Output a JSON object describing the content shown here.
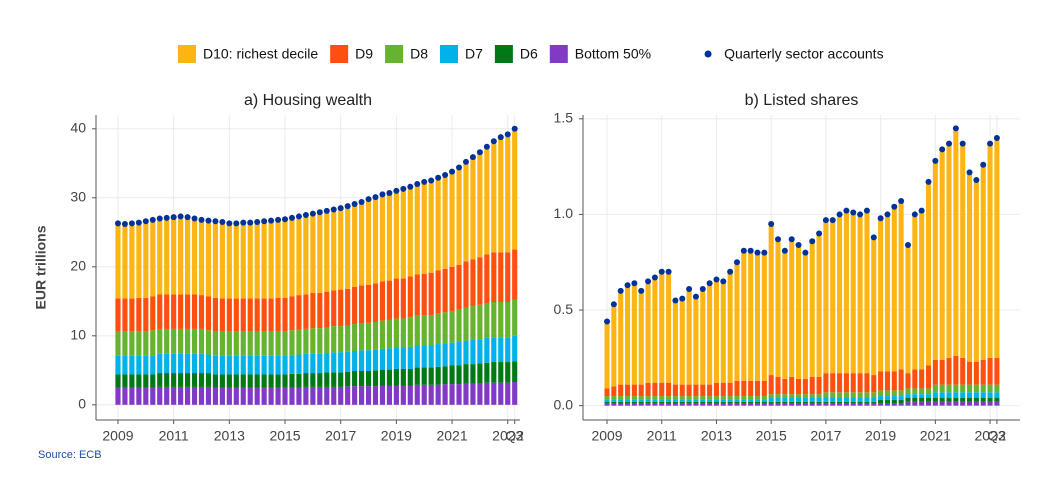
{
  "chart_data": [
    {
      "type": "bar",
      "stacked": true,
      "title": "a) Housing wealth",
      "ylabel": "EUR trillions",
      "categories": [
        "2009",
        null,
        null,
        null,
        null,
        null,
        null,
        null,
        "2011",
        null,
        null,
        null,
        null,
        null,
        null,
        null,
        "2013",
        null,
        null,
        null,
        null,
        null,
        null,
        null,
        "2015",
        null,
        null,
        null,
        null,
        null,
        null,
        null,
        "2017",
        null,
        null,
        null,
        null,
        null,
        null,
        null,
        "2019",
        null,
        null,
        null,
        null,
        null,
        null,
        null,
        "2021",
        null,
        null,
        null,
        null,
        null,
        null,
        null,
        "2023",
        "Q2"
      ],
      "ylim": [
        -2.2,
        42
      ],
      "yticks": [
        0,
        10,
        20,
        30,
        40
      ],
      "grid": true,
      "series": [
        {
          "name": "D10: richest decile",
          "color": "#fdb515",
          "values": [
            10.6,
            10.5,
            10.6,
            10.6,
            10.8,
            10.8,
            10.7,
            10.8,
            10.9,
            11.0,
            10.9,
            10.7,
            10.6,
            10.7,
            10.8,
            10.8,
            10.6,
            10.6,
            10.7,
            10.7,
            10.8,
            10.9,
            11.0,
            11.0,
            11.1,
            11.1,
            11.1,
            11.2,
            11.2,
            11.4,
            11.4,
            11.4,
            11.5,
            11.7,
            11.7,
            11.8,
            12.1,
            12.2,
            12.3,
            12.4,
            12.4,
            12.7,
            12.7,
            12.8,
            13.0,
            13.1,
            13.1,
            13.3,
            13.5,
            13.8,
            14.1,
            14.5,
            14.9,
            15.3,
            15.8,
            16.4,
            16.8,
            17.2
          ]
        },
        {
          "name": "D9",
          "color": "#ff4f0f",
          "values": [
            4.8,
            4.8,
            4.8,
            4.9,
            4.9,
            4.9,
            5.0,
            5.0,
            5.0,
            5.0,
            5.0,
            5.0,
            4.9,
            4.9,
            4.9,
            4.8,
            4.8,
            4.8,
            4.8,
            4.8,
            4.8,
            4.8,
            4.8,
            4.9,
            4.9,
            4.9,
            5.0,
            5.0,
            5.1,
            5.1,
            5.2,
            5.2,
            5.3,
            5.3,
            5.4,
            5.5,
            5.5,
            5.6,
            5.7,
            5.7,
            5.8,
            5.8,
            5.9,
            6.0,
            6.0,
            6.1,
            6.2,
            6.3,
            6.4,
            6.5,
            6.7,
            6.8,
            6.9,
            7.1,
            7.2,
            7.2,
            7.2,
            7.3
          ]
        },
        {
          "name": "D8",
          "color": "#65b32e",
          "values": [
            3.5,
            3.5,
            3.5,
            3.5,
            3.5,
            3.6,
            3.6,
            3.6,
            3.6,
            3.6,
            3.6,
            3.6,
            3.6,
            3.5,
            3.5,
            3.5,
            3.5,
            3.5,
            3.5,
            3.5,
            3.5,
            3.5,
            3.5,
            3.5,
            3.5,
            3.6,
            3.6,
            3.6,
            3.7,
            3.7,
            3.7,
            3.8,
            3.8,
            3.8,
            3.9,
            3.9,
            4.0,
            4.0,
            4.1,
            4.1,
            4.2,
            4.2,
            4.3,
            4.3,
            4.4,
            4.4,
            4.5,
            4.5,
            4.6,
            4.7,
            4.8,
            4.9,
            5.0,
            5.0,
            5.1,
            5.1,
            5.1,
            5.2
          ]
        },
        {
          "name": "D7",
          "color": "#00b1ea",
          "values": [
            2.7,
            2.7,
            2.7,
            2.7,
            2.7,
            2.8,
            2.8,
            2.8,
            2.8,
            2.8,
            2.8,
            2.8,
            2.8,
            2.7,
            2.7,
            2.7,
            2.7,
            2.7,
            2.7,
            2.7,
            2.7,
            2.7,
            2.7,
            2.7,
            2.7,
            2.7,
            2.8,
            2.8,
            2.8,
            2.8,
            2.8,
            2.9,
            2.9,
            2.9,
            2.9,
            3.0,
            3.0,
            3.0,
            3.0,
            3.1,
            3.1,
            3.1,
            3.2,
            3.2,
            3.2,
            3.2,
            3.3,
            3.3,
            3.3,
            3.4,
            3.4,
            3.5,
            3.5,
            3.6,
            3.6,
            3.6,
            3.6,
            3.7
          ]
        },
        {
          "name": "D6",
          "color": "#007816",
          "values": [
            1.9,
            1.9,
            1.9,
            1.9,
            1.9,
            1.9,
            2.0,
            2.0,
            2.0,
            2.0,
            2.0,
            2.0,
            2.0,
            2.0,
            1.9,
            1.9,
            1.9,
            1.9,
            1.9,
            1.9,
            1.9,
            1.9,
            1.9,
            1.9,
            1.9,
            2.0,
            2.0,
            2.0,
            2.0,
            2.0,
            2.1,
            2.1,
            2.1,
            2.1,
            2.2,
            2.2,
            2.2,
            2.3,
            2.3,
            2.3,
            2.4,
            2.4,
            2.4,
            2.5,
            2.5,
            2.5,
            2.6,
            2.6,
            2.7,
            2.7,
            2.8,
            2.8,
            2.9,
            2.9,
            3.0,
            3.0,
            3.0,
            3.0
          ]
        },
        {
          "name": "Bottom 50%",
          "color": "#8139c6",
          "values": [
            2.5,
            2.5,
            2.5,
            2.5,
            2.5,
            2.5,
            2.6,
            2.6,
            2.6,
            2.6,
            2.6,
            2.6,
            2.6,
            2.6,
            2.5,
            2.5,
            2.5,
            2.5,
            2.5,
            2.5,
            2.5,
            2.5,
            2.5,
            2.5,
            2.5,
            2.5,
            2.5,
            2.6,
            2.6,
            2.6,
            2.6,
            2.6,
            2.6,
            2.7,
            2.7,
            2.7,
            2.7,
            2.7,
            2.8,
            2.8,
            2.8,
            2.8,
            2.8,
            2.9,
            2.9,
            2.9,
            2.9,
            3.0,
            3.0,
            3.0,
            3.1,
            3.1,
            3.1,
            3.2,
            3.2,
            3.2,
            3.2,
            3.3
          ]
        },
        {
          "name": "Quarterly sector accounts",
          "type": "scatter",
          "color": "#003299",
          "values": [
            26.3,
            26.2,
            26.3,
            26.4,
            26.6,
            26.8,
            27.0,
            27.1,
            27.2,
            27.3,
            27.2,
            27.0,
            26.8,
            26.7,
            26.6,
            26.5,
            26.3,
            26.3,
            26.4,
            26.4,
            26.5,
            26.6,
            26.7,
            26.8,
            26.9,
            27.1,
            27.3,
            27.5,
            27.7,
            27.9,
            28.1,
            28.3,
            28.5,
            28.8,
            29.1,
            29.4,
            29.8,
            30.1,
            30.5,
            30.7,
            31.0,
            31.3,
            31.6,
            32.0,
            32.3,
            32.5,
            32.9,
            33.3,
            33.8,
            34.4,
            35.2,
            35.9,
            36.6,
            37.4,
            38.2,
            38.8,
            39.2,
            40.0
          ]
        }
      ]
    },
    {
      "type": "bar",
      "stacked": true,
      "title": "b) Listed shares",
      "categories": [
        "2009",
        null,
        null,
        null,
        null,
        null,
        null,
        null,
        "2011",
        null,
        null,
        null,
        null,
        null,
        null,
        null,
        "2013",
        null,
        null,
        null,
        null,
        null,
        null,
        null,
        "2015",
        null,
        null,
        null,
        null,
        null,
        null,
        null,
        "2017",
        null,
        null,
        null,
        null,
        null,
        null,
        null,
        "2019",
        null,
        null,
        null,
        null,
        null,
        null,
        null,
        "2021",
        null,
        null,
        null,
        null,
        null,
        null,
        null,
        "2023",
        "Q2"
      ],
      "ylim": [
        -0.075,
        1.52
      ],
      "yticks": [
        {
          "value": 0,
          "label": "0.0"
        },
        0.5,
        {
          "value": 1,
          "label": "1.0"
        },
        1.5
      ],
      "grid": true,
      "series": [
        {
          "name": "D10: richest decile",
          "color": "#fdb515",
          "values": [
            0.34,
            0.42,
            0.48,
            0.51,
            0.52,
            0.48,
            0.52,
            0.54,
            0.57,
            0.57,
            0.43,
            0.44,
            0.49,
            0.45,
            0.49,
            0.52,
            0.53,
            0.52,
            0.57,
            0.61,
            0.67,
            0.67,
            0.66,
            0.66,
            0.78,
            0.71,
            0.66,
            0.71,
            0.69,
            0.65,
            0.7,
            0.74,
            0.79,
            0.79,
            0.82,
            0.84,
            0.83,
            0.82,
            0.84,
            0.71,
            0.79,
            0.81,
            0.85,
            0.87,
            0.66,
            0.8,
            0.82,
            0.95,
            1.03,
            1.09,
            1.11,
            1.18,
            1.11,
            0.98,
            0.94,
            1.01,
            1.11,
            1.14
          ]
        },
        {
          "name": "D9",
          "color": "#ff4f0f",
          "values": [
            0.04,
            0.05,
            0.06,
            0.06,
            0.06,
            0.06,
            0.07,
            0.07,
            0.07,
            0.07,
            0.06,
            0.06,
            0.06,
            0.06,
            0.06,
            0.06,
            0.07,
            0.07,
            0.07,
            0.08,
            0.08,
            0.08,
            0.08,
            0.08,
            0.1,
            0.09,
            0.08,
            0.09,
            0.08,
            0.08,
            0.09,
            0.09,
            0.1,
            0.1,
            0.1,
            0.1,
            0.1,
            0.1,
            0.1,
            0.09,
            0.1,
            0.1,
            0.1,
            0.11,
            0.08,
            0.1,
            0.1,
            0.12,
            0.13,
            0.13,
            0.14,
            0.15,
            0.14,
            0.12,
            0.12,
            0.13,
            0.14,
            0.14
          ]
        },
        {
          "name": "D8",
          "color": "#65b32e",
          "values": [
            0.02,
            0.02,
            0.02,
            0.02,
            0.02,
            0.02,
            0.02,
            0.02,
            0.02,
            0.02,
            0.02,
            0.02,
            0.02,
            0.02,
            0.02,
            0.02,
            0.02,
            0.02,
            0.02,
            0.02,
            0.02,
            0.02,
            0.02,
            0.02,
            0.02,
            0.02,
            0.02,
            0.02,
            0.02,
            0.02,
            0.02,
            0.02,
            0.03,
            0.03,
            0.03,
            0.03,
            0.03,
            0.03,
            0.03,
            0.03,
            0.03,
            0.03,
            0.03,
            0.03,
            0.03,
            0.03,
            0.03,
            0.03,
            0.04,
            0.04,
            0.04,
            0.04,
            0.04,
            0.04,
            0.04,
            0.04,
            0.04,
            0.04
          ]
        },
        {
          "name": "D7",
          "color": "#00b1ea",
          "values": [
            0.01,
            0.01,
            0.01,
            0.01,
            0.01,
            0.01,
            0.01,
            0.01,
            0.01,
            0.01,
            0.01,
            0.01,
            0.01,
            0.01,
            0.01,
            0.01,
            0.01,
            0.01,
            0.01,
            0.01,
            0.01,
            0.01,
            0.01,
            0.01,
            0.02,
            0.02,
            0.02,
            0.02,
            0.02,
            0.02,
            0.02,
            0.02,
            0.02,
            0.02,
            0.02,
            0.02,
            0.02,
            0.02,
            0.02,
            0.02,
            0.02,
            0.02,
            0.02,
            0.02,
            0.02,
            0.02,
            0.02,
            0.02,
            0.03,
            0.03,
            0.03,
            0.03,
            0.03,
            0.03,
            0.03,
            0.03,
            0.03,
            0.03
          ]
        },
        {
          "name": "D6",
          "color": "#007816",
          "values": [
            0.01,
            0.01,
            0.01,
            0.01,
            0.01,
            0.01,
            0.01,
            0.01,
            0.01,
            0.01,
            0.01,
            0.01,
            0.01,
            0.01,
            0.01,
            0.01,
            0.01,
            0.01,
            0.01,
            0.01,
            0.01,
            0.01,
            0.01,
            0.01,
            0.01,
            0.01,
            0.01,
            0.01,
            0.01,
            0.01,
            0.01,
            0.01,
            0.01,
            0.01,
            0.01,
            0.01,
            0.01,
            0.01,
            0.01,
            0.01,
            0.02,
            0.02,
            0.02,
            0.02,
            0.02,
            0.02,
            0.02,
            0.02,
            0.02,
            0.02,
            0.02,
            0.02,
            0.02,
            0.02,
            0.02,
            0.02,
            0.02,
            0.02
          ]
        },
        {
          "name": "Bottom 50%",
          "color": "#8139c6",
          "values": [
            0.01,
            0.01,
            0.01,
            0.01,
            0.01,
            0.01,
            0.01,
            0.01,
            0.01,
            0.01,
            0.01,
            0.01,
            0.01,
            0.01,
            0.01,
            0.01,
            0.01,
            0.01,
            0.01,
            0.01,
            0.01,
            0.01,
            0.01,
            0.01,
            0.01,
            0.01,
            0.01,
            0.01,
            0.01,
            0.01,
            0.01,
            0.01,
            0.01,
            0.01,
            0.01,
            0.01,
            0.01,
            0.01,
            0.01,
            0.01,
            0.01,
            0.01,
            0.01,
            0.01,
            0.02,
            0.02,
            0.02,
            0.02,
            0.02,
            0.02,
            0.02,
            0.02,
            0.02,
            0.02,
            0.02,
            0.02,
            0.02,
            0.02
          ]
        },
        {
          "name": "Quarterly sector accounts",
          "type": "scatter",
          "color": "#003299",
          "values": [
            0.44,
            0.53,
            0.6,
            0.63,
            0.64,
            0.6,
            0.65,
            0.67,
            0.7,
            0.7,
            0.55,
            0.56,
            0.61,
            0.57,
            0.61,
            0.64,
            0.66,
            0.65,
            0.7,
            0.75,
            0.81,
            0.81,
            0.8,
            0.8,
            0.95,
            0.87,
            0.81,
            0.87,
            0.84,
            0.8,
            0.86,
            0.9,
            0.97,
            0.97,
            1.0,
            1.02,
            1.01,
            1.0,
            1.02,
            0.88,
            0.98,
            1.0,
            1.04,
            1.07,
            0.84,
            1.0,
            1.02,
            1.17,
            1.28,
            1.34,
            1.37,
            1.45,
            1.37,
            1.22,
            1.18,
            1.26,
            1.37,
            1.4
          ]
        }
      ]
    }
  ],
  "source": "Source: ECB"
}
